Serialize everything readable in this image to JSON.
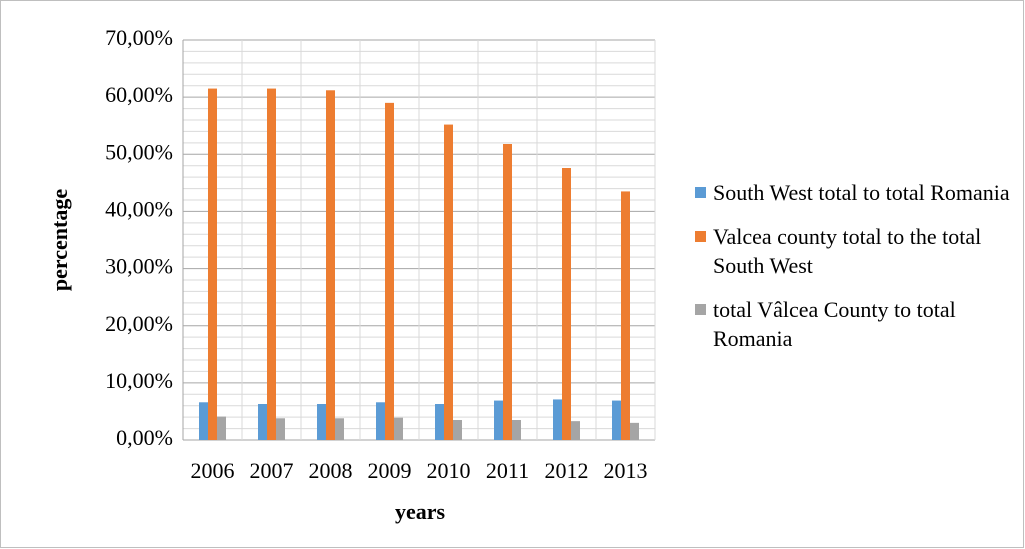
{
  "chart_data": {
    "type": "bar",
    "x_label": "years",
    "y_label": "percentage",
    "categories": [
      "2006",
      "2007",
      "2008",
      "2009",
      "2010",
      "2011",
      "2012",
      "2013"
    ],
    "series": [
      {
        "name": "South West total to total Romania",
        "color": "#5b9bd5",
        "values": [
          6.6,
          6.3,
          6.3,
          6.6,
          6.3,
          6.9,
          7.1,
          6.9
        ]
      },
      {
        "name": "Valcea county total to the total South West",
        "color": "#ed7d31",
        "values": [
          61.5,
          61.5,
          61.2,
          59.0,
          55.2,
          51.8,
          47.6,
          43.5
        ]
      },
      {
        "name": "total Vâlcea County to total Romania",
        "color": "#a5a5a5",
        "values": [
          4.1,
          3.8,
          3.8,
          3.9,
          3.5,
          3.5,
          3.3,
          3.0
        ]
      }
    ],
    "ylim": [
      0,
      70
    ],
    "yticks": [
      {
        "value": 0,
        "label": "0,00%"
      },
      {
        "value": 10,
        "label": "10,00%"
      },
      {
        "value": 20,
        "label": "20,00%"
      },
      {
        "value": 30,
        "label": "30,00%"
      },
      {
        "value": 40,
        "label": "40,00%"
      },
      {
        "value": 50,
        "label": "50,00%"
      },
      {
        "value": 60,
        "label": "60,00%"
      },
      {
        "value": 70,
        "label": "70,00%"
      }
    ],
    "minor_yticks": [
      2,
      4,
      6,
      8,
      12,
      14,
      16,
      18,
      22,
      24,
      26,
      28,
      32,
      34,
      36,
      38,
      42,
      44,
      46,
      48,
      52,
      54,
      56,
      58,
      62,
      64,
      66,
      68
    ],
    "grid": true,
    "legend": "right"
  }
}
